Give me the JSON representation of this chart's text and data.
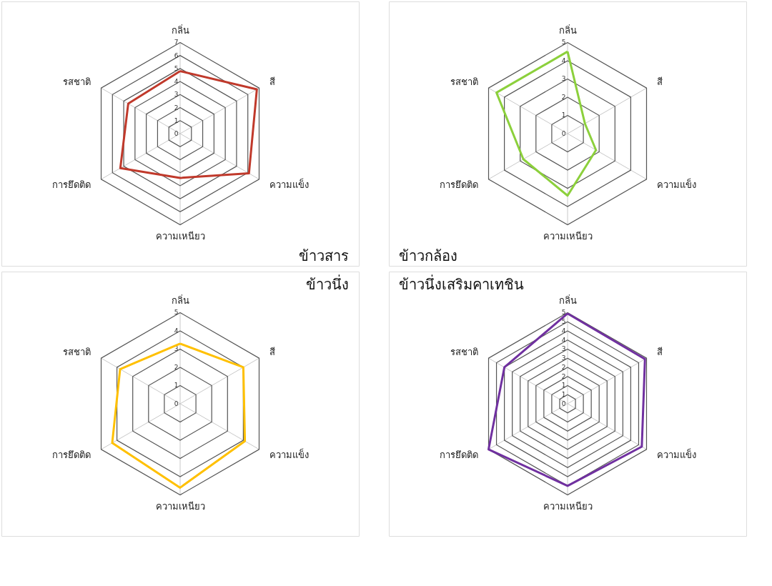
{
  "chart_data": [
    {
      "type": "radar",
      "title": "ข้าวสาร",
      "categories": [
        "กลิ่น",
        "สี",
        "ความแข็ง",
        "ความเหนียว",
        "การยึดติด",
        "รสชาติ"
      ],
      "grid": true,
      "ylim": [
        0,
        7
      ],
      "yticks": [
        0,
        1,
        2,
        3,
        4,
        5,
        6,
        7
      ],
      "series": [
        {
          "color": "#c0392b",
          "values": [
            4.8,
            6.8,
            6.1,
            3.4,
            5.3,
            4.6
          ]
        }
      ]
    },
    {
      "type": "radar",
      "title": "ข้าวกล้อง",
      "categories": [
        "กลิ่น",
        "สี",
        "ความแข็ง",
        "ความเหนียว",
        "การยึดติด",
        "รสชาติ"
      ],
      "grid": true,
      "ylim": [
        0,
        5
      ],
      "yticks": [
        0,
        1,
        2,
        3,
        4,
        5
      ],
      "series": [
        {
          "color": "#8cd03c",
          "values": [
            4.5,
            1.1,
            1.8,
            3.4,
            2.8,
            4.5
          ]
        }
      ]
    },
    {
      "type": "radar",
      "title": "ข้าวนึ่ง",
      "categories": [
        "กลิ่น",
        "สี",
        "ความแข็ง",
        "ความเหนียว",
        "การยึดติด",
        "รสชาติ"
      ],
      "grid": true,
      "ylim": [
        0,
        5
      ],
      "yticks": [
        0,
        1,
        2,
        3,
        4,
        5
      ],
      "series": [
        {
          "color": "#ffc000",
          "values": [
            3.3,
            4.0,
            4.1,
            4.6,
            4.3,
            3.8
          ]
        }
      ]
    },
    {
      "type": "radar",
      "title": "ข้าวนึ่งเสริมคาเทชิน",
      "categories": [
        "กลิ่น",
        "สี",
        "ความแข็ง",
        "ความเหนียว",
        "การยึดติด",
        "รสชาติ"
      ],
      "grid": true,
      "ylim": [
        0,
        5
      ],
      "yticks": [
        0,
        {
          "value": 0.5,
          "label": "1"
        },
        1,
        {
          "value": 1.5,
          "label": "2"
        },
        2,
        {
          "value": 2.5,
          "label": "3"
        },
        3,
        {
          "value": 3.5,
          "label": "4"
        },
        4,
        {
          "value": 4.5,
          "label": "5"
        },
        5
      ],
      "series": [
        {
          "color": "#7030a0",
          "values": [
            4.95,
            4.9,
            4.7,
            4.5,
            5.0,
            4.0
          ]
        }
      ]
    }
  ]
}
